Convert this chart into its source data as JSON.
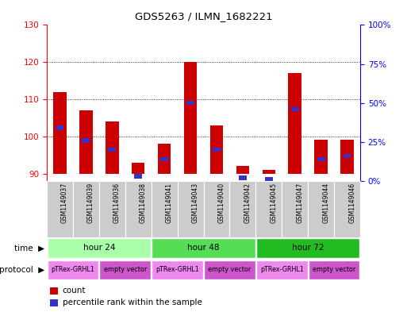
{
  "title": "GDS5263 / ILMN_1682221",
  "samples": [
    "GSM1149037",
    "GSM1149039",
    "GSM1149036",
    "GSM1149038",
    "GSM1149041",
    "GSM1149043",
    "GSM1149040",
    "GSM1149042",
    "GSM1149045",
    "GSM1149047",
    "GSM1149044",
    "GSM1149046"
  ],
  "count_values": [
    112,
    107,
    104,
    93,
    98,
    120,
    103,
    92,
    91,
    117,
    99,
    99
  ],
  "percentile_values": [
    34,
    26,
    20,
    3,
    14,
    50,
    20,
    2,
    1,
    46,
    14,
    16
  ],
  "ylim_left": [
    88,
    130
  ],
  "ylim_right": [
    0,
    100
  ],
  "yticks_left": [
    90,
    100,
    110,
    120,
    130
  ],
  "yticks_right": [
    0,
    25,
    50,
    75,
    100
  ],
  "ytick_labels_right": [
    "0%",
    "25%",
    "50%",
    "75%",
    "100%"
  ],
  "bar_color": "#cc0000",
  "blue_color": "#3333cc",
  "time_groups": [
    {
      "label": "hour 24",
      "start": 0,
      "end": 4,
      "color": "#aaffaa"
    },
    {
      "label": "hour 48",
      "start": 4,
      "end": 8,
      "color": "#55dd55"
    },
    {
      "label": "hour 72",
      "start": 8,
      "end": 12,
      "color": "#22bb22"
    }
  ],
  "protocol_groups": [
    {
      "label": "pTRex-GRHL1",
      "start": 0,
      "end": 2,
      "color": "#ee88ee"
    },
    {
      "label": "empty vector",
      "start": 2,
      "end": 4,
      "color": "#cc55cc"
    },
    {
      "label": "pTRex-GRHL1",
      "start": 4,
      "end": 6,
      "color": "#ee88ee"
    },
    {
      "label": "empty vector",
      "start": 6,
      "end": 8,
      "color": "#cc55cc"
    },
    {
      "label": "pTRex-GRHL1",
      "start": 8,
      "end": 10,
      "color": "#ee88ee"
    },
    {
      "label": "empty vector",
      "start": 10,
      "end": 12,
      "color": "#cc55cc"
    }
  ],
  "bg_color": "#ffffff",
  "sample_bg_color": "#cccccc",
  "bar_width": 0.5,
  "blue_bar_width": 0.3,
  "blue_bar_height": 1.2,
  "ybase": 90
}
